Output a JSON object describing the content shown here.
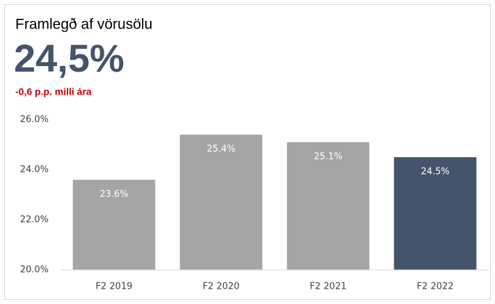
{
  "chart_data": {
    "type": "bar",
    "title": "Framlegð af vörusölu",
    "headline": "24,5%",
    "subtitle": "-0,6 p.p. milli ára",
    "categories": [
      "F2 2019",
      "F2 2020",
      "F2 2021",
      "F2 2022"
    ],
    "values": [
      23.6,
      25.4,
      25.1,
      24.5
    ],
    "value_labels": [
      "23.6%",
      "25.4%",
      "25.1%",
      "24.5%"
    ],
    "colors": [
      "#a5a5a5",
      "#a5a5a5",
      "#a5a5a5",
      "#44546a"
    ],
    "ylim": [
      20,
      26
    ],
    "yticks": [
      {
        "value": 20,
        "label": "20.0%"
      },
      {
        "value": 22,
        "label": "22.0%"
      },
      {
        "value": 24,
        "label": "24.0%"
      },
      {
        "value": 26,
        "label": "26.0%"
      }
    ],
    "grid": false
  }
}
